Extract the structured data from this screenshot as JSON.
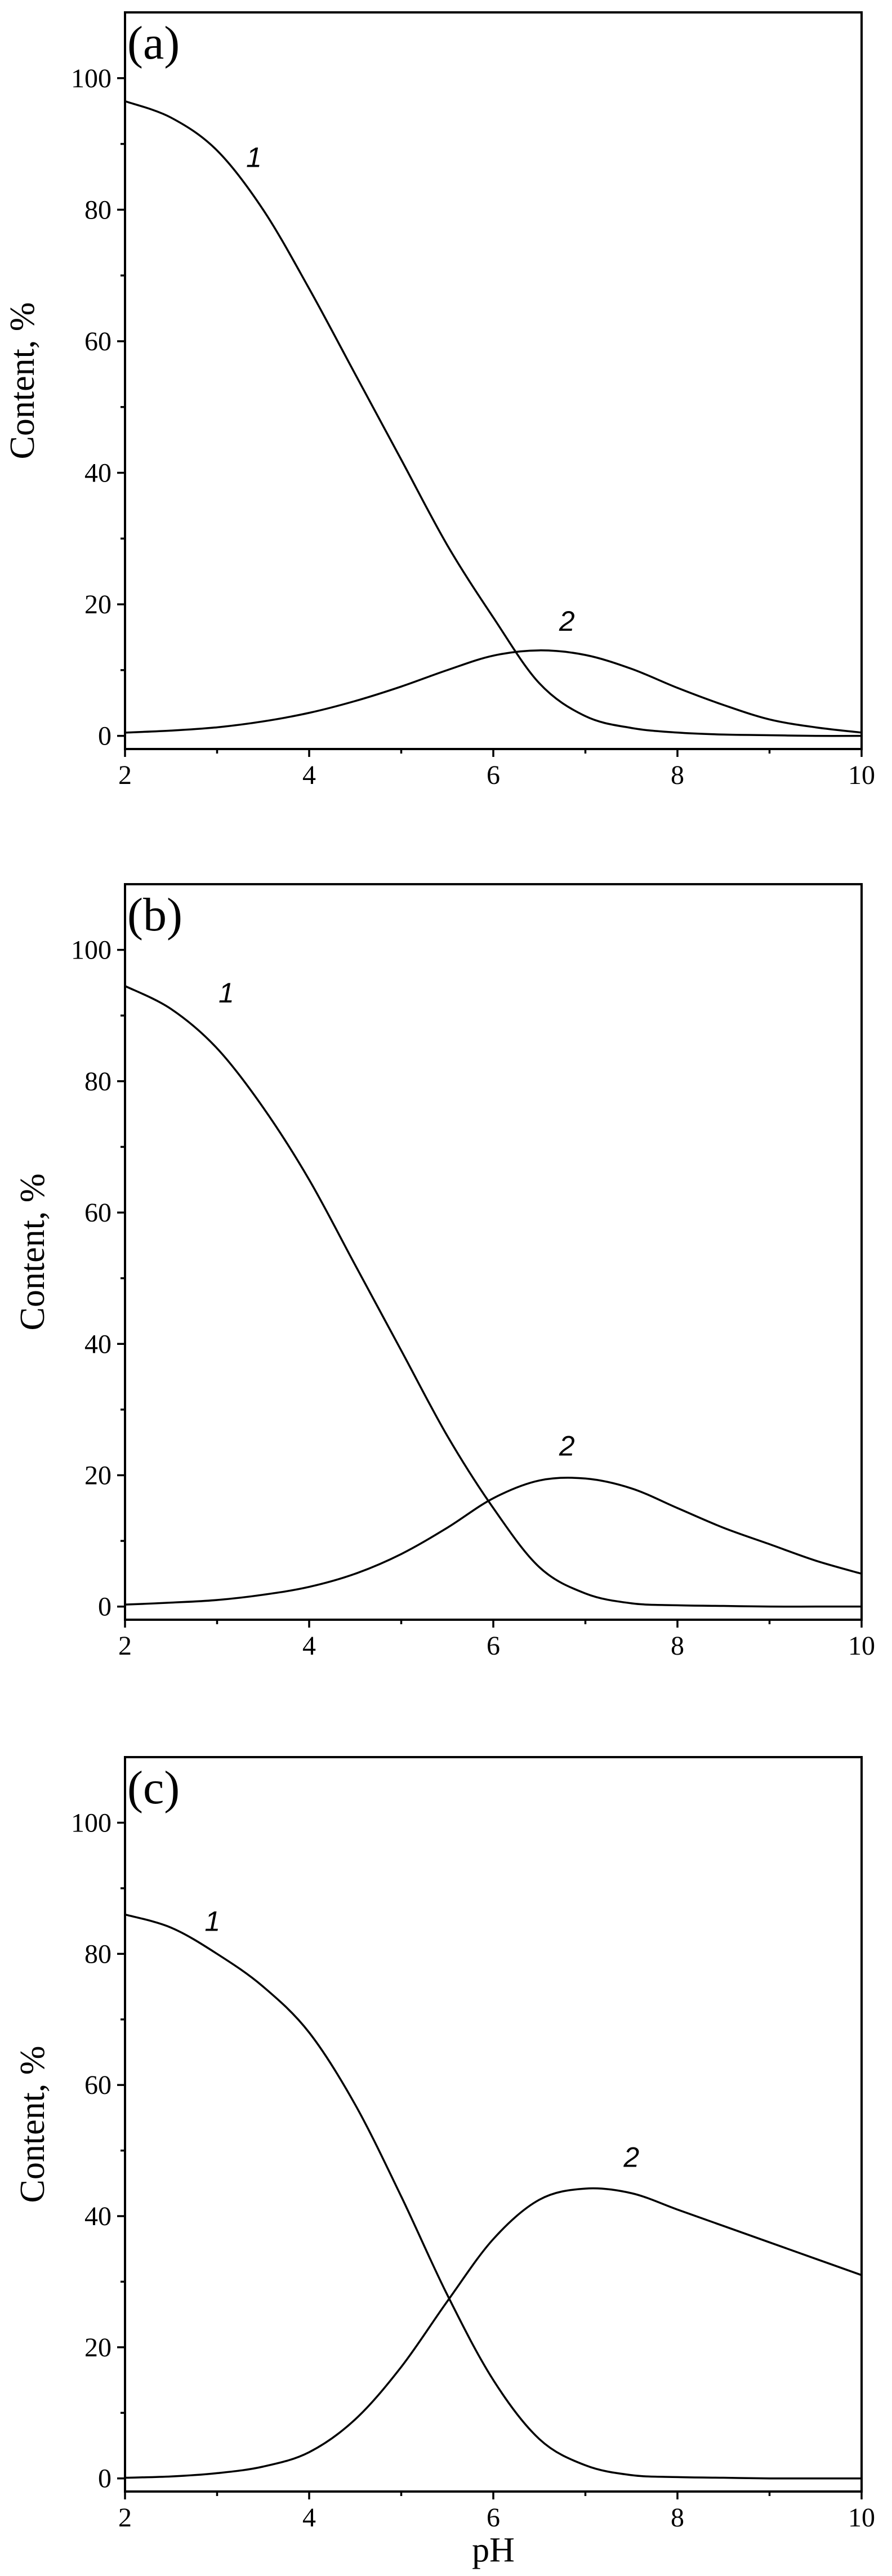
{
  "chart_data": [
    {
      "type": "line",
      "panel_label": "(a)",
      "xlabel": "",
      "ylabel": "Content, %",
      "xlim": [
        2,
        10
      ],
      "ylim": [
        -2,
        110
      ],
      "xticks": [
        2,
        4,
        6,
        8,
        10
      ],
      "yticks": [
        0,
        20,
        40,
        60,
        80,
        100
      ],
      "series": [
        {
          "name": "1",
          "x": [
            2,
            2.5,
            3,
            3.5,
            4,
            4.5,
            5,
            5.5,
            6,
            6.5,
            7,
            7.5,
            8,
            8.5,
            9,
            9.5,
            10
          ],
          "y": [
            96.5,
            94,
            89,
            80,
            68,
            55,
            42,
            29,
            18,
            8,
            3,
            1.2,
            0.5,
            0.2,
            0.1,
            0,
            0
          ]
        },
        {
          "name": "2",
          "x": [
            2,
            2.5,
            3,
            3.5,
            4,
            4.5,
            5,
            5.5,
            6,
            6.5,
            7,
            7.5,
            8,
            8.5,
            9,
            9.5,
            10
          ],
          "y": [
            0.5,
            0.8,
            1.3,
            2.2,
            3.5,
            5.3,
            7.5,
            10,
            12.2,
            13,
            12.3,
            10.2,
            7.3,
            4.7,
            2.5,
            1.3,
            0.5
          ]
        }
      ],
      "curve_labels": [
        {
          "text": "1",
          "x": 3.4,
          "y": 86.5
        },
        {
          "text": "2",
          "x": 6.8,
          "y": 16
        }
      ]
    },
    {
      "type": "line",
      "panel_label": "(b)",
      "xlabel": "",
      "ylabel": "Content, %",
      "xlim": [
        2,
        10
      ],
      "ylim": [
        -2,
        110
      ],
      "xticks": [
        2,
        4,
        6,
        8,
        10
      ],
      "yticks": [
        0,
        20,
        40,
        60,
        80,
        100
      ],
      "series": [
        {
          "name": "1",
          "x": [
            2,
            2.5,
            3,
            3.5,
            4,
            4.5,
            5,
            5.5,
            6,
            6.5,
            7,
            7.5,
            8,
            8.5,
            9,
            9.5,
            10
          ],
          "y": [
            94.5,
            91,
            85,
            76,
            65,
            52,
            39,
            26,
            15,
            6,
            2,
            0.5,
            0.2,
            0.1,
            0,
            0,
            0
          ]
        },
        {
          "name": "2",
          "x": [
            2,
            2.5,
            3,
            3.5,
            4,
            4.5,
            5,
            5.5,
            6,
            6.5,
            7,
            7.5,
            8,
            8.5,
            9,
            9.5,
            10
          ],
          "y": [
            0.3,
            0.6,
            1.0,
            1.8,
            3.0,
            5.0,
            8.0,
            12.0,
            16.5,
            19.2,
            19.5,
            18.0,
            15.0,
            12.0,
            9.5,
            7.0,
            5.0
          ]
        }
      ],
      "curve_labels": [
        {
          "text": "1",
          "x": 3.1,
          "y": 92
        },
        {
          "text": "2",
          "x": 6.8,
          "y": 23
        }
      ]
    },
    {
      "type": "line",
      "panel_label": "(c)",
      "xlabel": "pH",
      "ylabel": "Content, %",
      "xlim": [
        2,
        10
      ],
      "ylim": [
        -2,
        110
      ],
      "xticks": [
        2,
        4,
        6,
        8,
        10
      ],
      "yticks": [
        0,
        20,
        40,
        60,
        80,
        100
      ],
      "series": [
        {
          "name": "1",
          "x": [
            2,
            2.5,
            3,
            3.5,
            4,
            4.5,
            5,
            5.5,
            6,
            6.5,
            7,
            7.5,
            8,
            8.5,
            9,
            9.5,
            10
          ],
          "y": [
            86,
            84,
            80,
            75,
            68,
            57,
            43,
            28,
            15,
            6,
            2,
            0.5,
            0.2,
            0.1,
            0,
            0,
            0
          ]
        },
        {
          "name": "2",
          "x": [
            2,
            2.5,
            3,
            3.5,
            4,
            4.5,
            5,
            5.5,
            6,
            6.5,
            7,
            7.5,
            8,
            8.5,
            9,
            9.5,
            10
          ],
          "y": [
            0.1,
            0.3,
            0.8,
            1.8,
            4.0,
            9.0,
            17.0,
            27.0,
            36.5,
            42.5,
            44.2,
            43.5,
            41.0,
            38.5,
            36.0,
            33.5,
            31.0
          ]
        }
      ],
      "curve_labels": [
        {
          "text": "1",
          "x": 2.95,
          "y": 83.5
        },
        {
          "text": "2",
          "x": 7.5,
          "y": 47.5
        }
      ]
    }
  ]
}
